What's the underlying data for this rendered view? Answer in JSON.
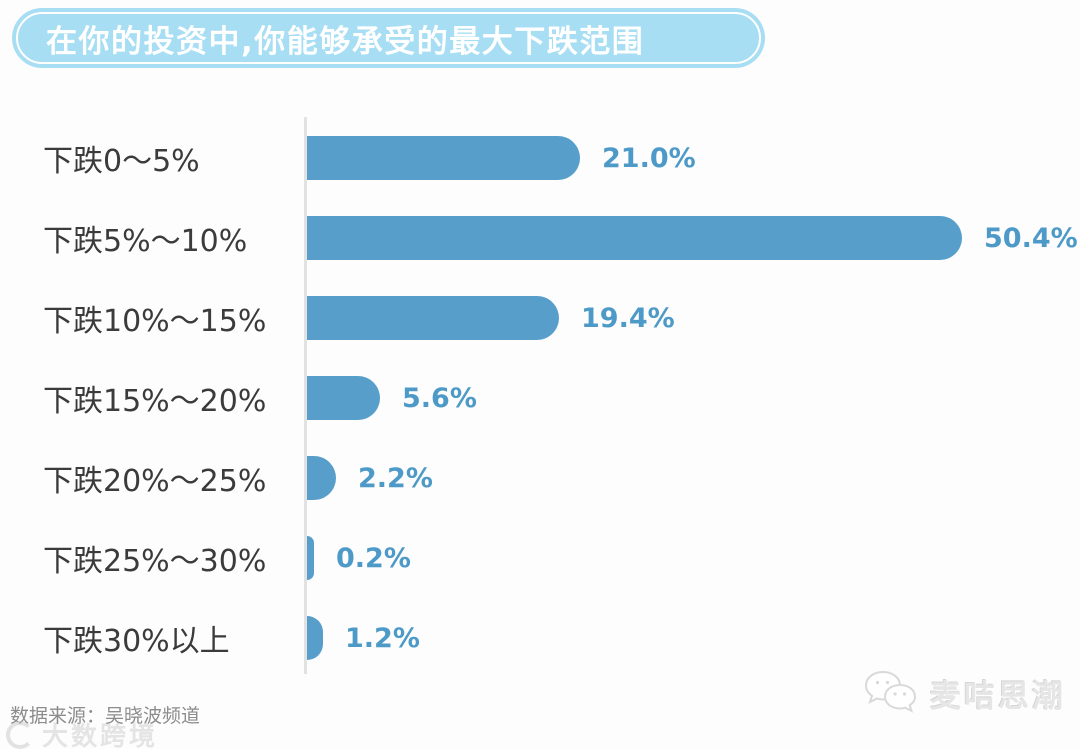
{
  "title": {
    "text": "在你的投资中,你能够承受的最大下跌范围",
    "bg_color": "#a7def4",
    "text_color": "#ffffff"
  },
  "chart_data": {
    "type": "bar",
    "orientation": "horizontal",
    "title": "在你的投资中,你能够承受的最大下跌范围",
    "categories": [
      "下跌0～5%",
      "下跌5%～10%",
      "下跌10%～15%",
      "下跌15%～20%",
      "下跌20%～25%",
      "下跌25%～30%",
      "下跌30%以上"
    ],
    "values": [
      21.0,
      50.4,
      19.4,
      5.6,
      2.2,
      0.2,
      1.2
    ],
    "value_labels": [
      "21.0%",
      "50.4%",
      "19.4%",
      "5.6%",
      "2.2%",
      "0.2%",
      "1.2%"
    ],
    "unit": "%",
    "xlim": [
      0,
      55
    ],
    "grid": false,
    "legend": false,
    "bar_color": "#579fca",
    "value_label_color": "#4d9ac8",
    "category_label_color": "#3b3b3b",
    "axis_color": "#e2e2e2"
  },
  "footer": {
    "source": "数据来源：吴晓波频道",
    "watermark": "大数跨境",
    "brand": "麦咭思潮"
  }
}
